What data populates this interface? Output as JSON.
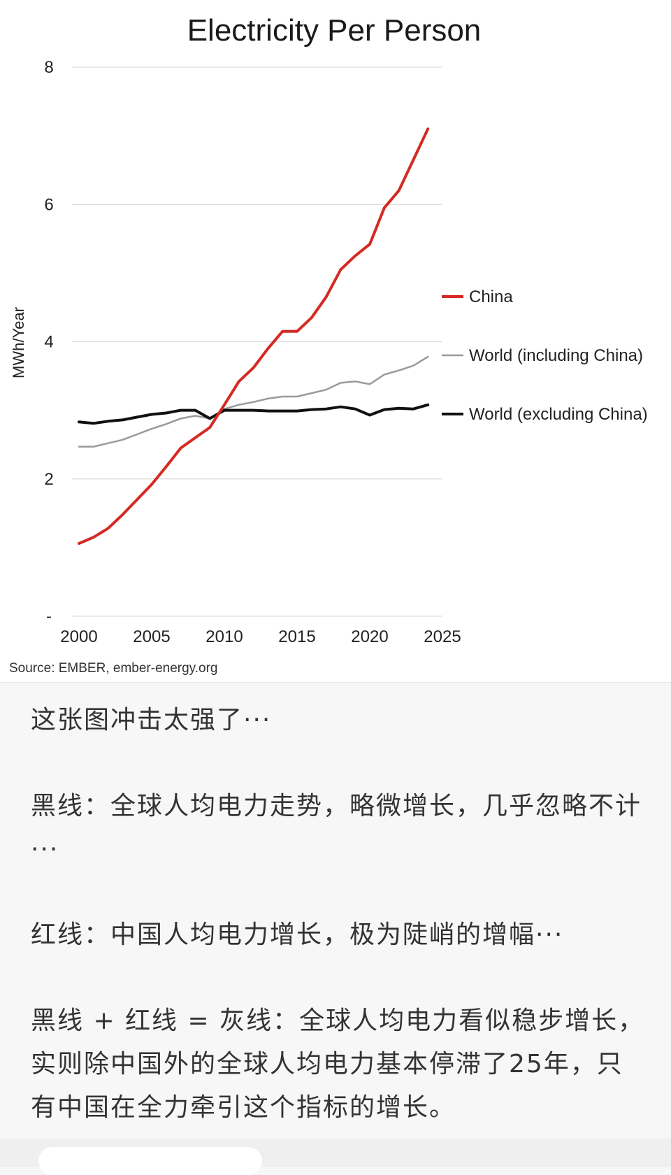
{
  "chart_data": {
    "type": "line",
    "title": "Electricity Per Person",
    "ylabel": "MWh/Year",
    "xlabel": "",
    "xlim": [
      2000,
      2025
    ],
    "ylim": [
      0,
      8
    ],
    "x_ticks": [
      "2000",
      "2005",
      "2010",
      "2015",
      "2020",
      "2025"
    ],
    "y_ticks": [
      "-",
      "2",
      "4",
      "6",
      "8"
    ],
    "grid": "horizontal",
    "legend_position": "right",
    "source": "Source: EMBER, ember-energy.org",
    "x": [
      2000,
      2001,
      2002,
      2003,
      2004,
      2005,
      2006,
      2007,
      2008,
      2009,
      2010,
      2011,
      2012,
      2013,
      2014,
      2015,
      2016,
      2017,
      2018,
      2019,
      2020,
      2021,
      2022,
      2023,
      2024
    ],
    "series": [
      {
        "name": "China",
        "color": "#d42a22",
        "width": 4,
        "values": [
          1.06,
          1.15,
          1.28,
          1.48,
          1.7,
          1.92,
          2.18,
          2.45,
          2.6,
          2.75,
          3.08,
          3.42,
          3.62,
          3.9,
          4.15,
          4.15,
          4.35,
          4.65,
          5.05,
          5.25,
          5.42,
          5.95,
          6.2,
          6.65,
          7.1
        ]
      },
      {
        "name": "World (including China)",
        "color": "#9a9a9a",
        "width": 2.5,
        "values": [
          2.47,
          2.47,
          2.52,
          2.57,
          2.65,
          2.73,
          2.8,
          2.88,
          2.92,
          2.88,
          3.02,
          3.08,
          3.12,
          3.17,
          3.2,
          3.2,
          3.25,
          3.3,
          3.4,
          3.42,
          3.38,
          3.52,
          3.58,
          3.65,
          3.78
        ]
      },
      {
        "name": "World (excluding China)",
        "color": "#111111",
        "width": 4,
        "values": [
          2.83,
          2.81,
          2.84,
          2.86,
          2.9,
          2.94,
          2.96,
          3.0,
          3.0,
          2.88,
          3.0,
          3.0,
          3.0,
          2.99,
          2.99,
          2.99,
          3.01,
          3.02,
          3.05,
          3.02,
          2.93,
          3.01,
          3.03,
          3.02,
          3.08
        ]
      }
    ]
  },
  "post": {
    "p1": "这张图冲击太强了···",
    "p2": "黑线：全球人均电力走势，略微增长，几乎忽略不计···",
    "p3": "红线：中国人均电力增长，极为陡峭的增幅···",
    "p4": "黑线 + 红线 = 灰线：全球人均电力看似稳步增长，实则除中国外的全球人均电力基本停滞了25年，只有中国在全力牵引这个指标的增长。"
  }
}
